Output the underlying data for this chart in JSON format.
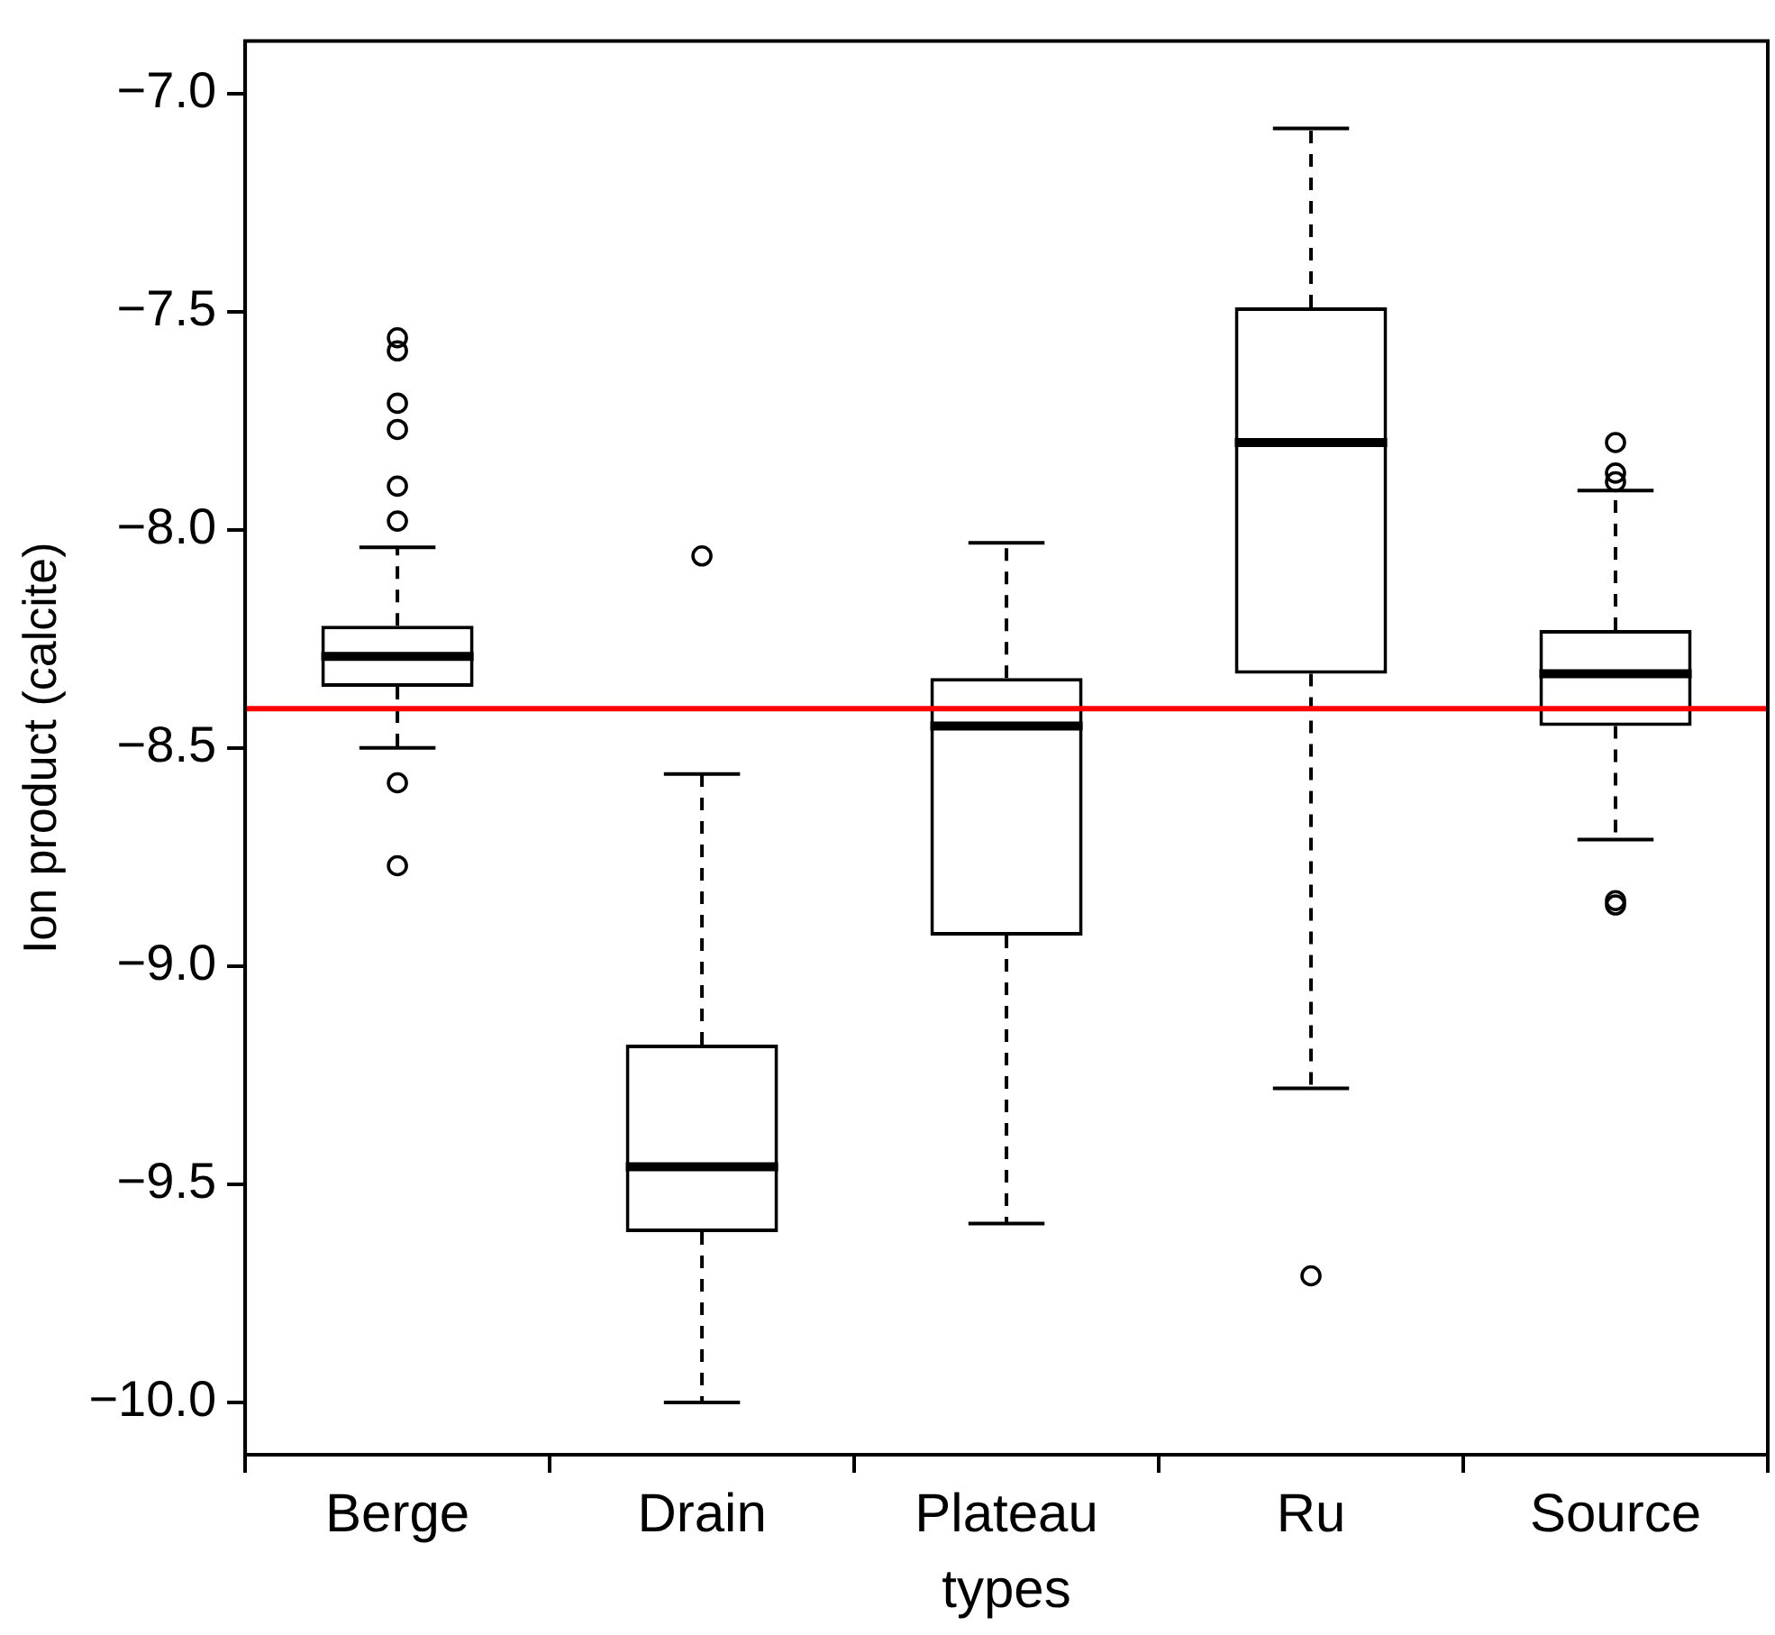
{
  "chart_data": {
    "type": "box",
    "xlabel": "types",
    "ylabel": "Ion product (calcite)",
    "categories": [
      "Berge",
      "Drain",
      "Plateau",
      "Ru",
      "Source"
    ],
    "boxes": [
      {
        "low": -8.5,
        "q1": -8.36,
        "q3": -8.22,
        "median": -8.29,
        "high": -8.04,
        "outliers": [
          -7.56,
          -7.59,
          -7.71,
          -7.77,
          -7.9,
          -7.98,
          -8.58,
          -8.77
        ]
      },
      {
        "low": -10.0,
        "q1": -9.61,
        "q3": -9.18,
        "median": -9.46,
        "high": -8.56,
        "outliers": [
          -8.06
        ]
      },
      {
        "low": -9.59,
        "q1": -8.93,
        "q3": -8.34,
        "median": -8.45,
        "high": -8.03
      },
      {
        "low": -9.28,
        "q1": -8.33,
        "q3": -7.49,
        "median": -7.8,
        "high": -7.08,
        "outliers": [
          -9.71
        ]
      },
      {
        "low": -8.71,
        "q1": -8.45,
        "q3": -8.23,
        "median": -8.33,
        "high": -7.91,
        "outliers": [
          -7.8,
          -7.87,
          -7.89,
          -8.85,
          -8.86
        ]
      }
    ],
    "color": "#000000",
    "ylim": [
      -10.12,
      -6.88
    ],
    "yticks": [
      {
        "value": -10,
        "label": "−10.0"
      },
      {
        "value": -9.5,
        "label": "−9.5"
      },
      {
        "value": -9,
        "label": "−9.0"
      },
      {
        "value": -8.5,
        "label": "−8.5"
      },
      {
        "value": -8,
        "label": "−8.0"
      },
      {
        "value": -7.5,
        "label": "−7.5"
      },
      {
        "value": -7,
        "label": "−7.0"
      }
    ],
    "ref_lines": [
      {
        "axis": "y",
        "value": -8.41,
        "color": "#ff0000"
      }
    ],
    "grid": false,
    "legend": false,
    "marker": "circle"
  }
}
